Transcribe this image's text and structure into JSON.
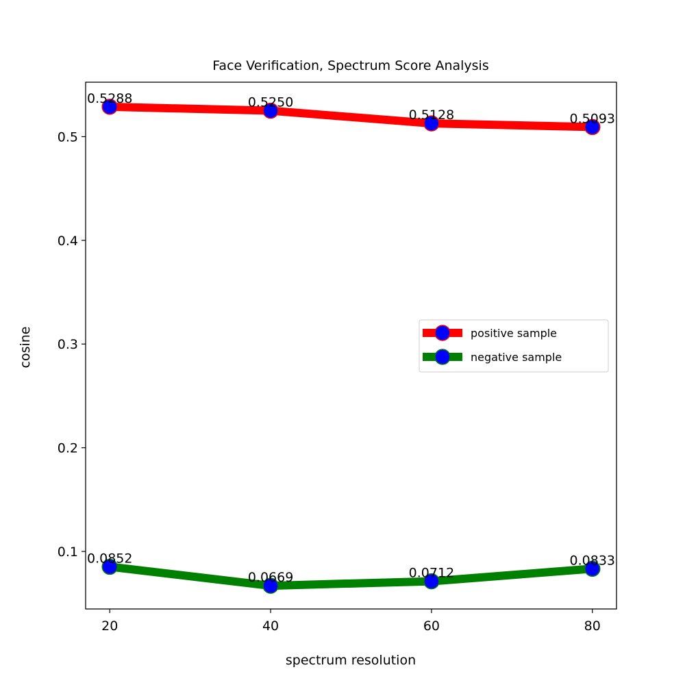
{
  "chart_data": {
    "type": "line",
    "title": "Face Verification, Spectrum Score Analysis",
    "xlabel": "spectrum resolution",
    "ylabel": "cosine",
    "x": [
      20,
      40,
      60,
      80
    ],
    "xlim": [
      17,
      83
    ],
    "ylim": [
      0.0445,
      0.5525
    ],
    "xticks": [
      20,
      40,
      60,
      80
    ],
    "xtick_labels": [
      "20",
      "40",
      "60",
      "80"
    ],
    "yticks": [
      0.1,
      0.2,
      0.3,
      0.4,
      0.5
    ],
    "ytick_labels": [
      "0.1",
      "0.2",
      "0.3",
      "0.4",
      "0.5"
    ],
    "legend_position": "center-right",
    "series": [
      {
        "name": "positive sample",
        "values": [
          0.5288,
          0.525,
          0.5128,
          0.5093
        ],
        "labels": [
          "0.5288",
          "0.5250",
          "0.5128",
          "0.5093"
        ],
        "line_color": "#ff0000",
        "marker_color": "#0000ff",
        "marker_edge": "#ff0000"
      },
      {
        "name": "negative sample",
        "values": [
          0.0852,
          0.0669,
          0.0712,
          0.0833
        ],
        "labels": [
          "0.0852",
          "0.0669",
          "0.0712",
          "0.0833"
        ],
        "line_color": "#008000",
        "marker_color": "#0000ff",
        "marker_edge": "#008000"
      }
    ]
  }
}
